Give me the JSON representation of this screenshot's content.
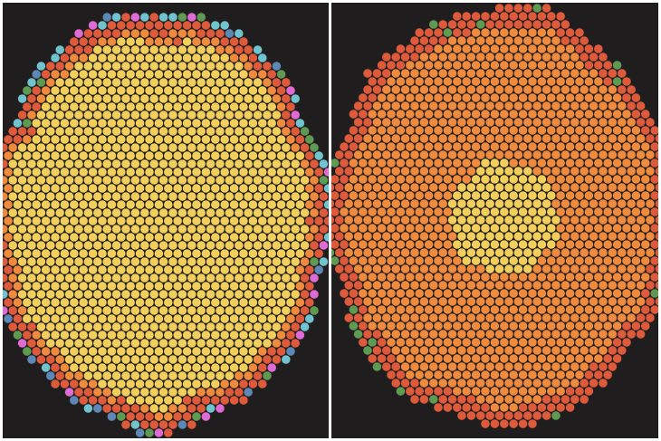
{
  "figure": {
    "panels": [
      {
        "id": "left",
        "description_tags": [
          "large-core",
          "multi-shell-boundary"
        ],
        "layers": [
          {
            "name": "core",
            "color": "#f1cf5a"
          },
          {
            "name": "inner-shell",
            "color": "#f08a3c"
          },
          {
            "name": "outer-shell",
            "color": "#de5a3b"
          },
          {
            "name": "boundary-green",
            "color": "#5f9a52"
          },
          {
            "name": "boundary-blue",
            "color": "#5b88b6"
          },
          {
            "name": "boundary-cyan",
            "color": "#6fc4cf"
          },
          {
            "name": "boundary-magenta",
            "color": "#e06ad6"
          }
        ]
      },
      {
        "id": "right",
        "description_tags": [
          "small-core",
          "orange-bulk"
        ],
        "layers": [
          {
            "name": "core",
            "color": "#f1cf5a"
          },
          {
            "name": "bulk",
            "color": "#f08a3c"
          },
          {
            "name": "outer-shell",
            "color": "#de5a3b"
          },
          {
            "name": "boundary-green",
            "color": "#5f9a52"
          }
        ]
      }
    ],
    "colors": {
      "background": "#1f1d1d",
      "divider": "#ffffff",
      "cell_outline": "#2a2424"
    }
  }
}
